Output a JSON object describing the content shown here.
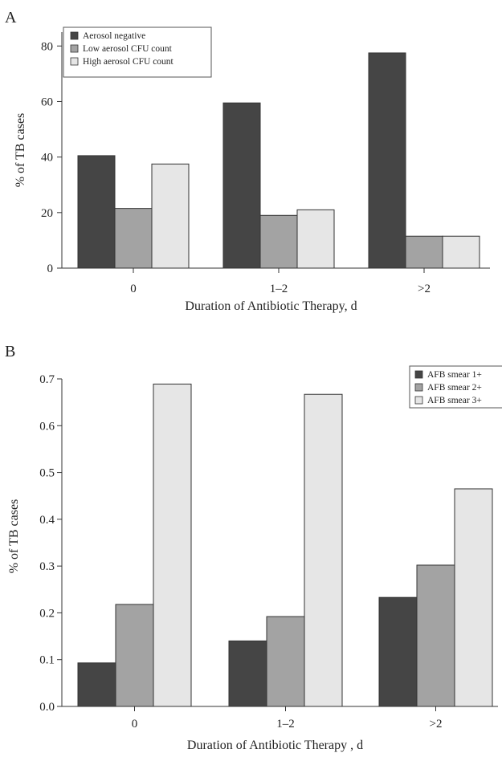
{
  "chart_data": [
    {
      "panel": "A",
      "type": "bar",
      "categories": [
        "0",
        "1–2",
        ">2"
      ],
      "series": [
        {
          "name": "Aerosol negative",
          "values": [
            40.5,
            59.5,
            77.5
          ]
        },
        {
          "name": "Low aerosol CFU count",
          "values": [
            21.5,
            19,
            11.5
          ]
        },
        {
          "name": "High aerosol CFU count",
          "values": [
            37.5,
            21,
            11.5
          ]
        }
      ],
      "xlabel": "Duration of Antibiotic Therapy, d",
      "ylabel": "% of TB cases",
      "ylim": [
        0,
        85
      ],
      "yticks": [
        "0",
        "20",
        "40",
        "60",
        "80"
      ],
      "colors": [
        "#454545",
        "#a3a3a3",
        "#e6e6e6"
      ],
      "legend_position": "top-left",
      "grid": false
    },
    {
      "panel": "B",
      "type": "bar",
      "categories": [
        "0",
        "1–2",
        ">2"
      ],
      "series": [
        {
          "name": "AFB smear 1+",
          "values": [
            0.093,
            0.14,
            0.233
          ]
        },
        {
          "name": "AFB smear 2+",
          "values": [
            0.218,
            0.192,
            0.302
          ]
        },
        {
          "name": "AFB smear 3+",
          "values": [
            0.689,
            0.667,
            0.465
          ]
        }
      ],
      "xlabel": "Duration of Antibiotic Therapy , d",
      "ylabel": "% of TB cases",
      "ylim": [
        0,
        0.7
      ],
      "yticks": [
        "0.0",
        "0.1",
        "0.2",
        "0.3",
        "0.4",
        "0.5",
        "0.6",
        "0.7"
      ],
      "colors": [
        "#454545",
        "#a3a3a3",
        "#e6e6e6"
      ],
      "legend_position": "top-right",
      "grid": false
    }
  ]
}
